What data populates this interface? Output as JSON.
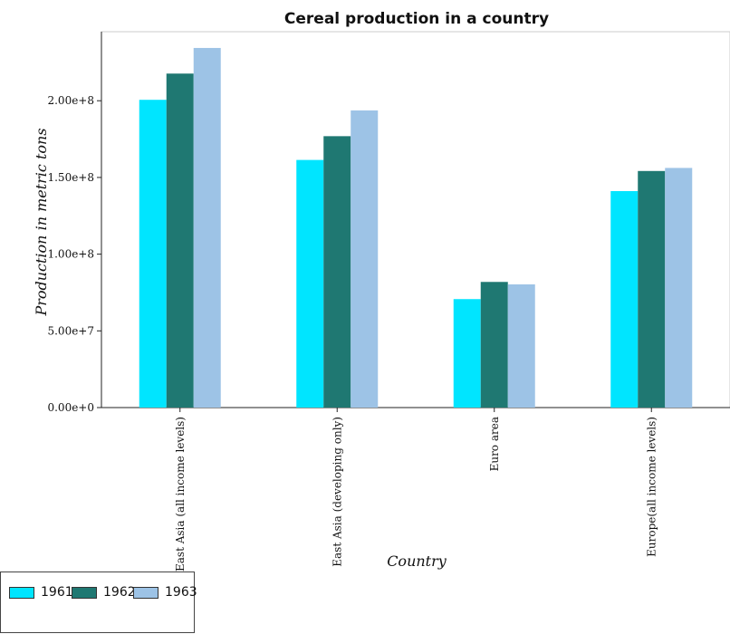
{
  "chart_data": {
    "type": "bar",
    "title": "Cereal production in a country",
    "xlabel": "Country",
    "ylabel": "Production in metric tons",
    "categories": [
      "East Asia (all income levels)",
      "East Asia (developing only)",
      "Euro area",
      "Europe(all income levels)"
    ],
    "series": [
      {
        "name": "1961",
        "color": "#00e5ff",
        "values": [
          200600000,
          161400000,
          70700000,
          141100000
        ]
      },
      {
        "name": "1962",
        "color": "#1f7872",
        "values": [
          217700000,
          176900000,
          81900000,
          154200000
        ]
      },
      {
        "name": "1963",
        "color": "#9dc3e6",
        "values": [
          234400000,
          193700000,
          80300000,
          156200000
        ]
      }
    ],
    "ylim": [
      0,
      245000000
    ],
    "yticks": [
      0,
      50000000,
      100000000,
      150000000,
      200000000
    ],
    "ytick_labels": [
      "0.00e+0",
      "5.00e+7",
      "1.00e+8",
      "1.50e+8",
      "2.00e+8"
    ],
    "grid": false,
    "legend_position": "bottom-left"
  }
}
